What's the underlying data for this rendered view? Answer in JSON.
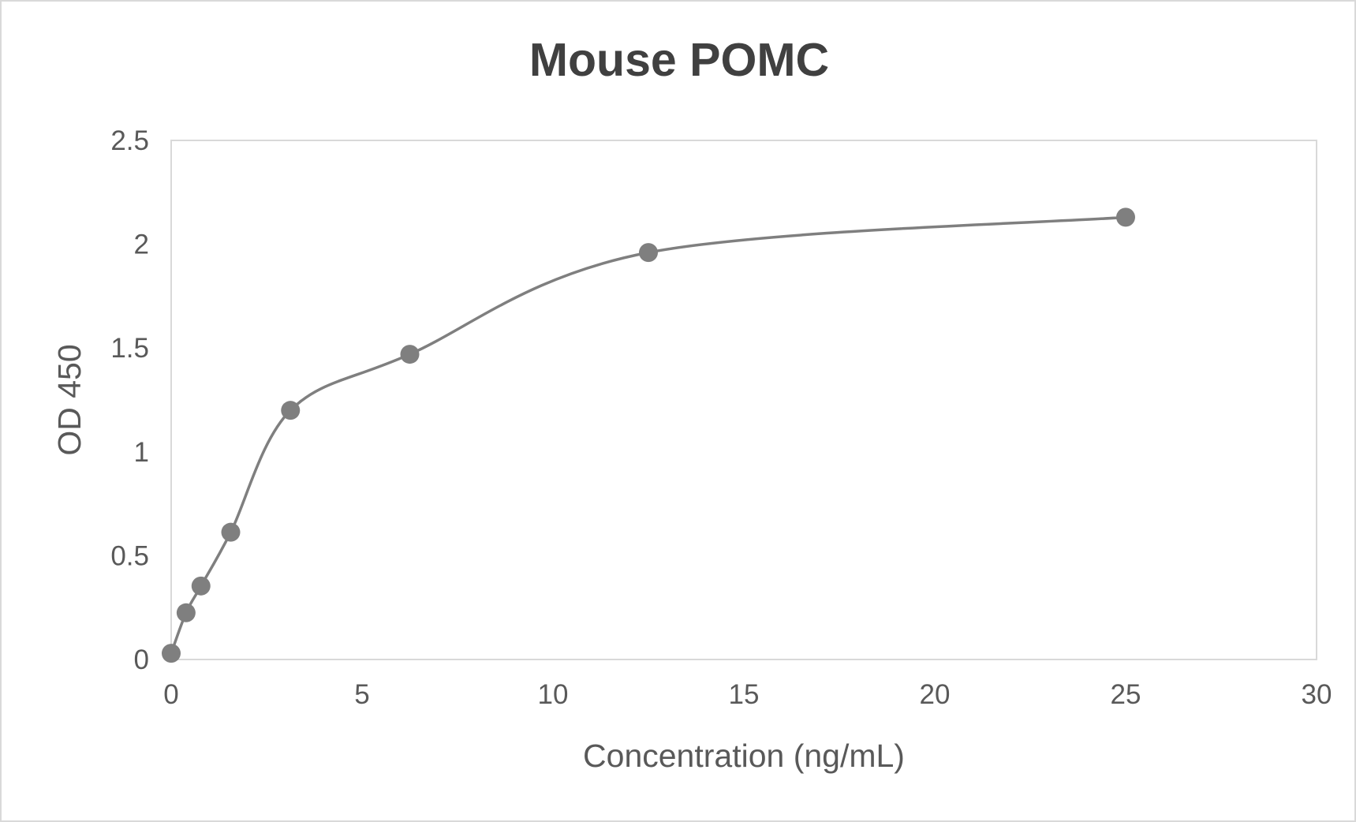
{
  "chart_data": {
    "type": "scatter",
    "subtype": "scatter with smooth lines and markers",
    "title": "Mouse POMC",
    "xlabel": "Concentration (ng/mL)",
    "ylabel": "OD 450",
    "xlim": [
      0,
      30
    ],
    "ylim": [
      0,
      2.5
    ],
    "xticks": [
      "0",
      "5",
      "10",
      "15",
      "20",
      "25",
      "30"
    ],
    "yticks": [
      "0",
      "0.5",
      "1",
      "1.5",
      "2",
      "2.5"
    ],
    "grid": false,
    "legend": "none",
    "series": [
      {
        "color": "#7f7f7f",
        "x": [
          0,
          0.39,
          0.78,
          1.56,
          3.125,
          6.25,
          12.5,
          25
        ],
        "y": [
          0.03,
          0.225,
          0.354,
          0.613,
          1.2,
          1.47,
          1.96,
          2.13
        ]
      }
    ]
  }
}
